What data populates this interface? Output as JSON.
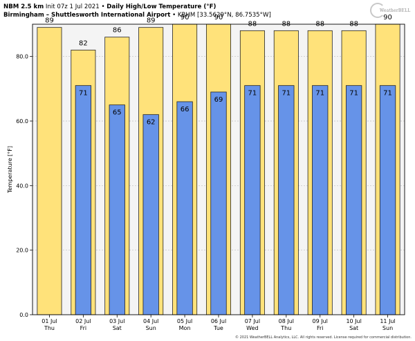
{
  "header": {
    "line1_model": "NBM 2.5 km",
    "line1_init": "Init 07z 1 Jul 2021",
    "line1_sep": "•",
    "line1_product": "Daily High/Low Temperature (°F)",
    "line2_station": "Birmingham – Shuttlesworth International Airport",
    "line2_sep": "•",
    "line2_coords": "KBHM [33.5629°N, 86.7535°W]"
  },
  "logo": {
    "text": "WeatherBELL",
    "icon": "weatherbell-logo"
  },
  "copyright": "© 2021 WeatherBELL Analytics, LLC. All rights reserved. License required for commercial distribution.",
  "colors": {
    "high_bar": "#ffe27a",
    "low_bar": "#6693e8",
    "plot_bg": "#f4f4f4",
    "grid": "#bdbdbd"
  },
  "chart_data": {
    "type": "bar",
    "ylabel": "Temperature [°F]",
    "ylim": [
      0,
      90
    ],
    "yticks": [
      "0.0",
      "20.0",
      "40.0",
      "60.0",
      "80.0"
    ],
    "grid": true,
    "categories": [
      {
        "date": "01 Jul",
        "day": "Thu"
      },
      {
        "date": "02 Jul",
        "day": "Fri"
      },
      {
        "date": "03 Jul",
        "day": "Sat"
      },
      {
        "date": "04 Jul",
        "day": "Sun"
      },
      {
        "date": "05 Jul",
        "day": "Mon"
      },
      {
        "date": "06 Jul",
        "day": "Tue"
      },
      {
        "date": "07 Jul",
        "day": "Wed"
      },
      {
        "date": "08 Jul",
        "day": "Thu"
      },
      {
        "date": "09 Jul",
        "day": "Fri"
      },
      {
        "date": "10 Jul",
        "day": "Sat"
      },
      {
        "date": "11 Jul",
        "day": "Sun"
      }
    ],
    "series": [
      {
        "key": "high",
        "values": [
          89,
          82,
          86,
          89,
          90,
          90,
          88,
          88,
          88,
          88,
          90
        ]
      },
      {
        "key": "low",
        "values": [
          null,
          71,
          65,
          62,
          66,
          69,
          71,
          71,
          71,
          71,
          71
        ]
      }
    ]
  }
}
